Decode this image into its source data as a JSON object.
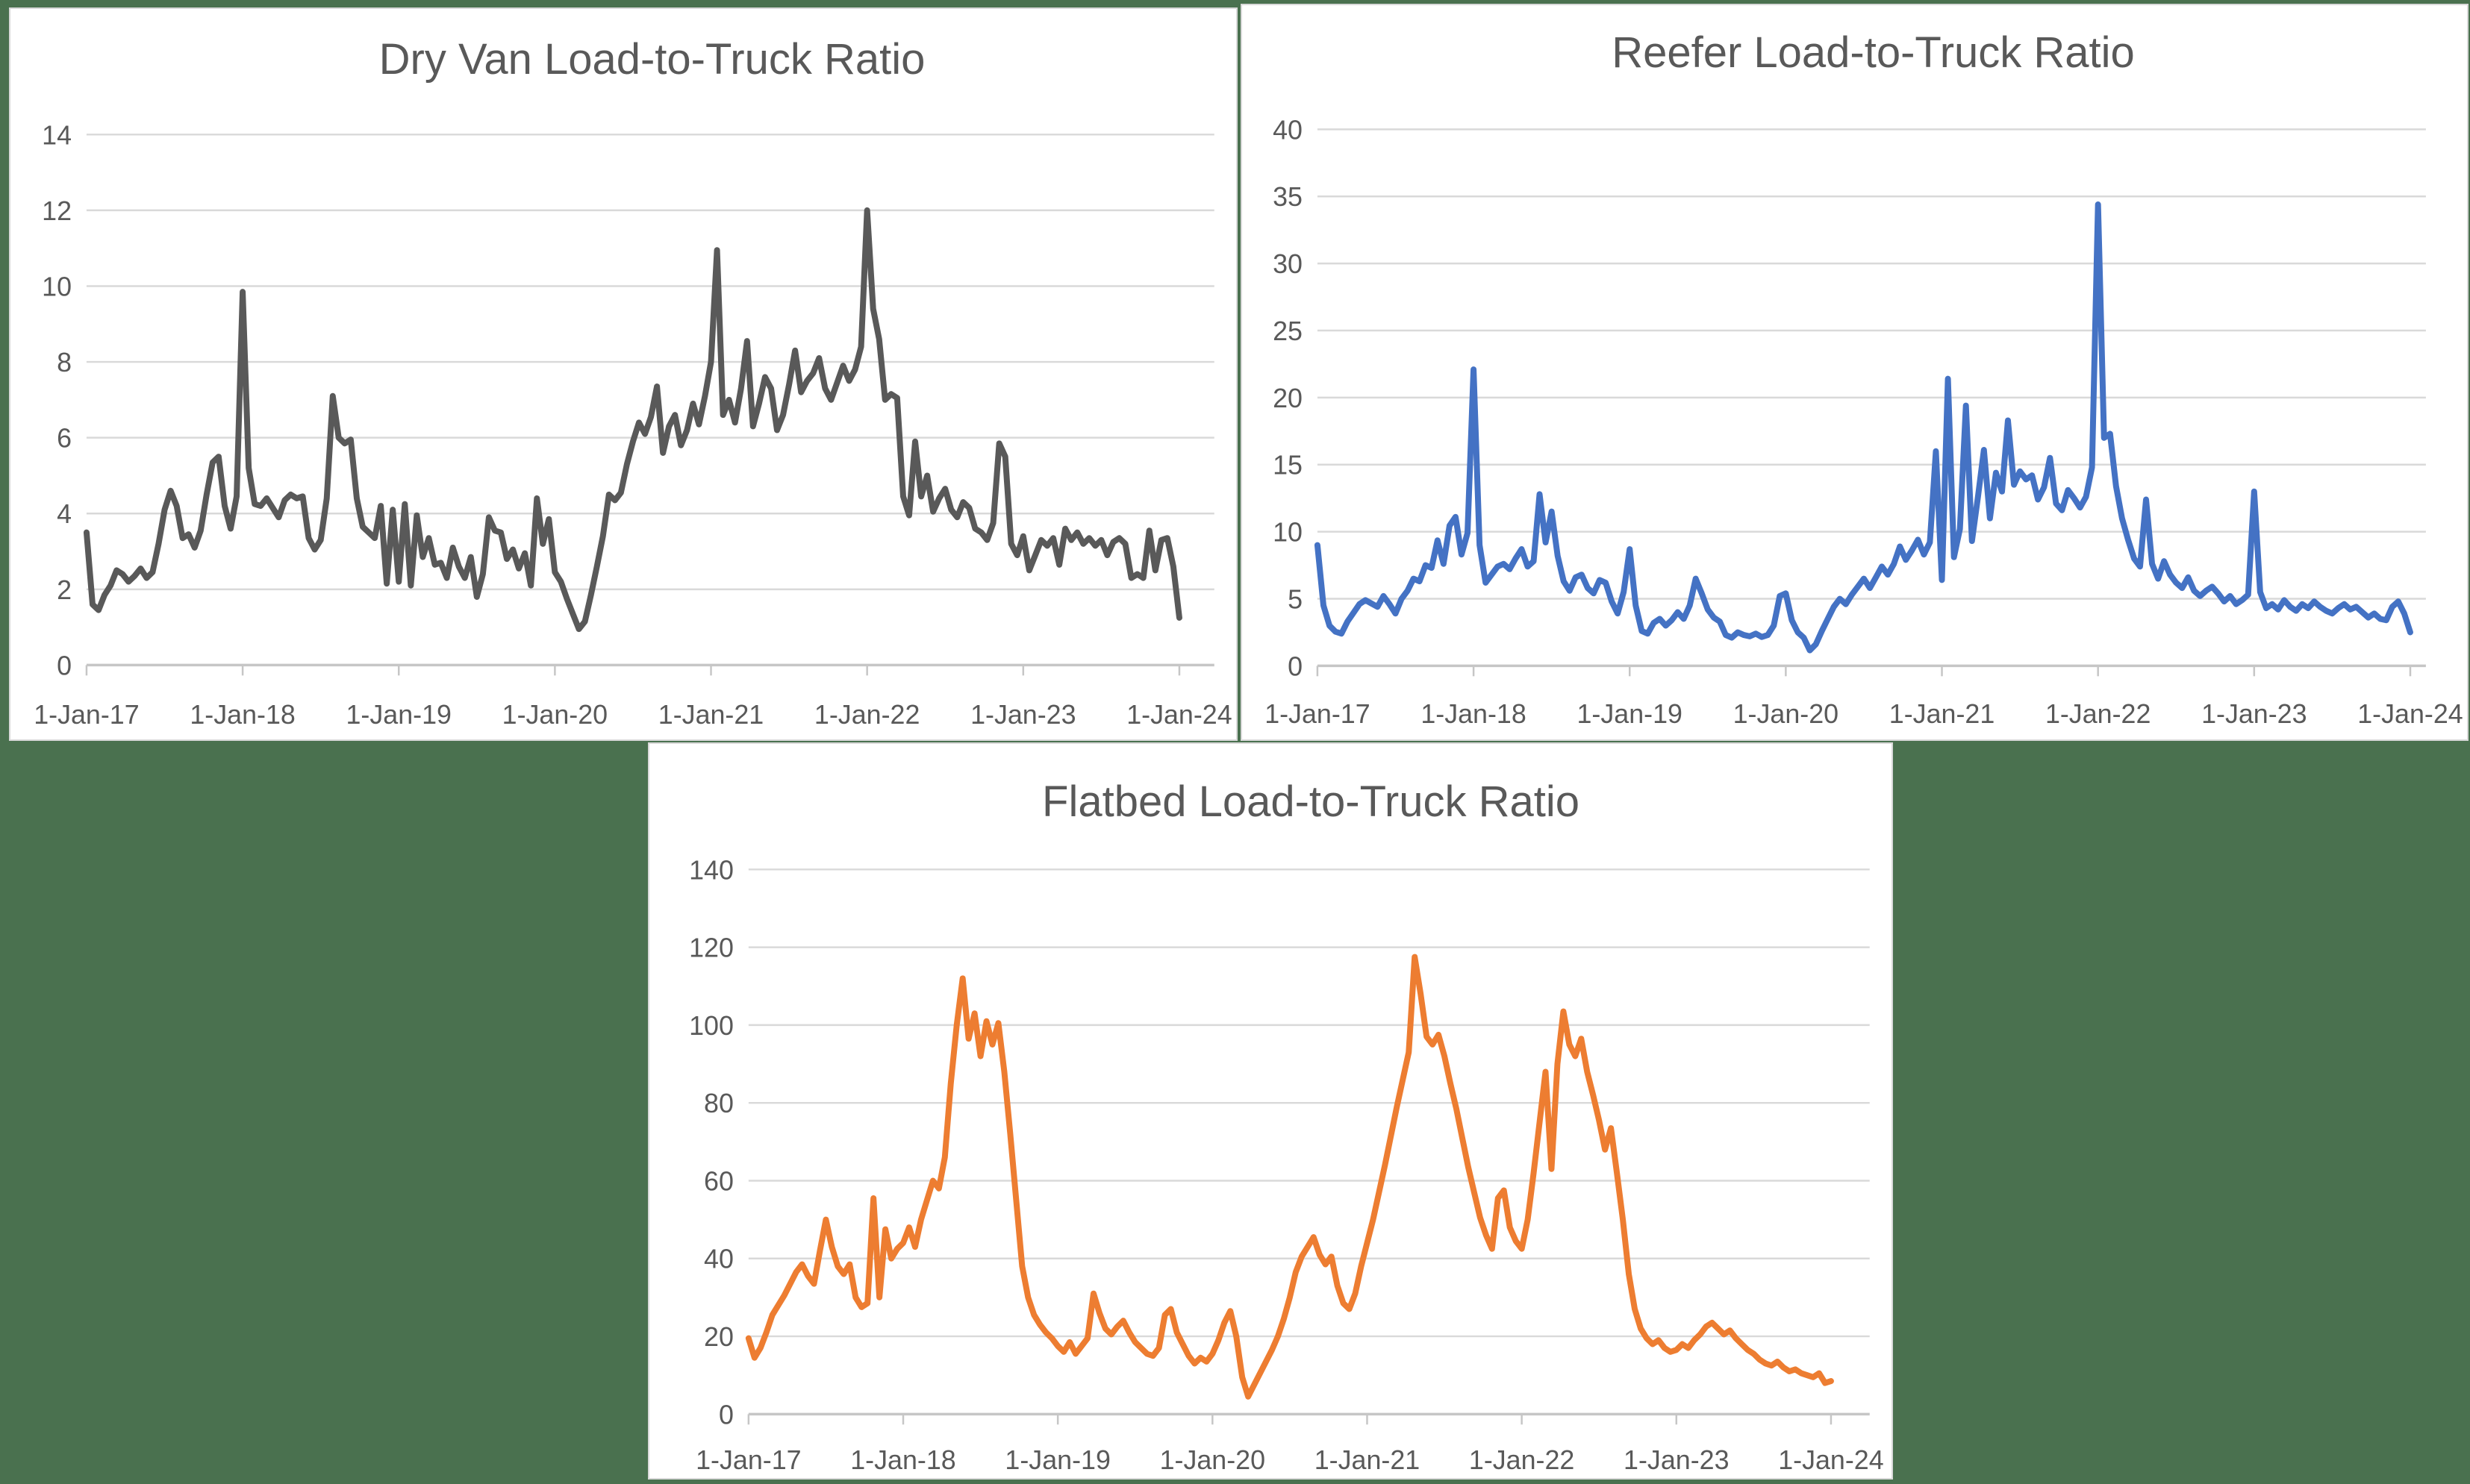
{
  "styles": {
    "page_background": "#4A714F",
    "card_background": "#FFFFFF",
    "card_border": "#D9D9D9",
    "grid_color": "#D9D9D9",
    "axis_color": "#C6C6C6",
    "text_color": "#595959",
    "title_color": "#595959"
  },
  "chart_data": [
    {
      "type": "line",
      "title": "Dry Van Load-to-Truck Ratio",
      "xlabel": "",
      "ylabel": "",
      "ylim": [
        0,
        14
      ],
      "y_ticks": [
        0,
        2,
        4,
        6,
        8,
        10,
        12,
        14
      ],
      "x_tick_labels": [
        "1-Jan-17",
        "1-Jan-18",
        "1-Jan-19",
        "1-Jan-20",
        "1-Jan-21",
        "1-Jan-22",
        "1-Jan-23",
        "1-Jan-24"
      ],
      "grid": true,
      "legend": "none",
      "sampling": "biweekly 2017-01-01 to 2024-01-01",
      "series": [
        {
          "name": "Dry Van Load-to-Truck Ratio",
          "color": "#595959",
          "values": [
            3.5,
            1.6,
            1.45,
            1.85,
            2.1,
            2.5,
            2.4,
            2.2,
            2.35,
            2.55,
            2.3,
            2.45,
            3.2,
            4.1,
            4.6,
            4.2,
            3.35,
            3.45,
            3.1,
            3.55,
            4.5,
            5.35,
            5.5,
            4.2,
            3.6,
            4.45,
            9.85,
            5.2,
            4.25,
            4.2,
            4.4,
            4.15,
            3.9,
            4.35,
            4.5,
            4.4,
            4.45,
            3.35,
            3.05,
            3.3,
            4.4,
            7.1,
            6.0,
            5.85,
            5.95,
            4.4,
            3.65,
            3.5,
            3.35,
            4.2,
            2.15,
            4.1,
            2.2,
            4.25,
            2.1,
            3.95,
            2.85,
            3.35,
            2.65,
            2.7,
            2.3,
            3.1,
            2.6,
            2.3,
            2.85,
            1.8,
            2.4,
            3.9,
            3.55,
            3.5,
            2.8,
            3.05,
            2.55,
            2.95,
            2.1,
            4.4,
            3.2,
            3.85,
            2.45,
            2.2,
            1.75,
            1.35,
            0.95,
            1.15,
            1.85,
            2.6,
            3.4,
            4.5,
            4.35,
            4.55,
            5.3,
            5.9,
            6.4,
            6.1,
            6.55,
            7.35,
            5.6,
            6.3,
            6.6,
            5.8,
            6.2,
            6.9,
            6.35,
            7.1,
            8.0,
            10.95,
            6.6,
            7.0,
            6.4,
            7.3,
            8.55,
            6.3,
            6.9,
            7.6,
            7.3,
            6.2,
            6.6,
            7.4,
            8.3,
            7.2,
            7.5,
            7.7,
            8.1,
            7.3,
            7.0,
            7.45,
            7.9,
            7.5,
            7.8,
            8.4,
            12.0,
            9.4,
            8.6,
            7.0,
            7.15,
            7.05,
            4.45,
            3.95,
            5.9,
            4.45,
            5.0,
            4.05,
            4.4,
            4.65,
            4.1,
            3.9,
            4.3,
            4.15,
            3.6,
            3.5,
            3.3,
            3.75,
            5.85,
            5.5,
            3.2,
            2.9,
            3.4,
            2.5,
            2.9,
            3.3,
            3.15,
            3.35,
            2.65,
            3.6,
            3.3,
            3.5,
            3.2,
            3.35,
            3.15,
            3.3,
            2.9,
            3.25,
            3.35,
            3.2,
            2.3,
            2.4,
            2.3,
            3.55,
            2.5,
            3.3,
            3.35,
            2.6,
            1.25
          ]
        }
      ]
    },
    {
      "type": "line",
      "title": "Reefer Load-to-Truck Ratio",
      "xlabel": "",
      "ylabel": "",
      "ylim": [
        0,
        40
      ],
      "y_ticks": [
        0,
        5,
        10,
        15,
        20,
        25,
        30,
        35,
        40
      ],
      "x_tick_labels": [
        "1-Jan-17",
        "1-Jan-18",
        "1-Jan-19",
        "1-Jan-20",
        "1-Jan-21",
        "1-Jan-22",
        "1-Jan-23",
        "1-Jan-24"
      ],
      "grid": true,
      "legend": "none",
      "sampling": "biweekly 2017-01-01 to 2024-01-01",
      "series": [
        {
          "name": "Reefer Load-to-Truck Ratio",
          "color": "#4472C4",
          "values": [
            9.0,
            4.5,
            3.0,
            2.55,
            2.4,
            3.3,
            3.95,
            4.6,
            4.9,
            4.65,
            4.4,
            5.2,
            4.6,
            3.9,
            5.0,
            5.6,
            6.5,
            6.3,
            7.5,
            7.3,
            9.35,
            7.6,
            10.45,
            11.1,
            8.3,
            9.9,
            22.1,
            9.0,
            6.2,
            6.8,
            7.4,
            7.6,
            7.2,
            8.0,
            8.7,
            7.4,
            7.8,
            12.8,
            9.2,
            11.5,
            8.2,
            6.3,
            5.6,
            6.6,
            6.8,
            5.8,
            5.4,
            6.4,
            6.2,
            4.8,
            3.9,
            5.5,
            8.7,
            4.5,
            2.6,
            2.4,
            3.2,
            3.5,
            3.0,
            3.4,
            4.0,
            3.5,
            4.5,
            6.5,
            5.4,
            4.2,
            3.6,
            3.3,
            2.3,
            2.1,
            2.5,
            2.3,
            2.2,
            2.4,
            2.15,
            2.3,
            3.0,
            5.2,
            5.4,
            3.4,
            2.5,
            2.1,
            1.15,
            1.6,
            2.6,
            3.5,
            4.4,
            5.0,
            4.6,
            5.3,
            5.9,
            6.5,
            5.8,
            6.6,
            7.4,
            6.8,
            7.6,
            8.9,
            7.9,
            8.6,
            9.4,
            8.3,
            9.2,
            16.0,
            6.4,
            21.4,
            8.1,
            10.2,
            19.4,
            9.3,
            12.6,
            16.1,
            11.0,
            14.4,
            13.0,
            18.3,
            13.5,
            14.5,
            13.9,
            14.2,
            12.4,
            13.3,
            15.5,
            12.1,
            11.6,
            13.1,
            12.5,
            11.8,
            12.6,
            14.8,
            34.4,
            17.0,
            17.3,
            13.4,
            11.0,
            9.4,
            8.0,
            7.4,
            12.4,
            7.6,
            6.5,
            7.8,
            6.8,
            6.2,
            5.8,
            6.6,
            5.6,
            5.2,
            5.6,
            5.9,
            5.4,
            4.8,
            5.2,
            4.6,
            4.9,
            5.3,
            13.0,
            5.5,
            4.3,
            4.6,
            4.2,
            4.9,
            4.4,
            4.1,
            4.6,
            4.3,
            4.8,
            4.4,
            4.1,
            3.9,
            4.3,
            4.6,
            4.2,
            4.4,
            4.0,
            3.6,
            3.9,
            3.5,
            3.4,
            4.4,
            4.8,
            3.9,
            2.5
          ]
        }
      ]
    },
    {
      "type": "line",
      "title": "Flatbed Load-to-Truck Ratio",
      "xlabel": "",
      "ylabel": "",
      "ylim": [
        0,
        140
      ],
      "y_ticks": [
        0,
        20,
        40,
        60,
        80,
        100,
        120,
        140
      ],
      "x_tick_labels": [
        "1-Jan-17",
        "1-Jan-18",
        "1-Jan-19",
        "1-Jan-20",
        "1-Jan-21",
        "1-Jan-22",
        "1-Jan-23",
        "1-Jan-24"
      ],
      "grid": true,
      "legend": "none",
      "sampling": "biweekly 2017-01-01 to 2024-01-01",
      "series": [
        {
          "name": "Flatbed Load-to-Truck Ratio",
          "color": "#ED7D31",
          "values": [
            19.5,
            14.5,
            17.0,
            21.0,
            25.5,
            28.0,
            30.5,
            33.5,
            36.5,
            38.5,
            35.5,
            33.5,
            42.0,
            50.0,
            43.0,
            38.0,
            36.0,
            38.5,
            30.0,
            27.5,
            28.5,
            55.5,
            30.0,
            47.5,
            40.0,
            42.5,
            44.0,
            48.0,
            43.0,
            50.0,
            55.0,
            60.0,
            58.0,
            66.0,
            85.0,
            100.0,
            112.0,
            96.5,
            103.0,
            92.0,
            101.0,
            95.0,
            100.5,
            88.0,
            72.0,
            55.0,
            38.0,
            30.0,
            25.5,
            23.0,
            21.0,
            19.5,
            17.5,
            16.0,
            18.5,
            15.5,
            17.5,
            19.5,
            31.0,
            26.0,
            22.0,
            20.5,
            22.5,
            24.0,
            21.0,
            18.5,
            17.0,
            15.5,
            15.0,
            17.0,
            25.5,
            27.0,
            21.0,
            18.0,
            15.0,
            13.0,
            14.5,
            13.5,
            15.5,
            19.0,
            23.5,
            26.5,
            20.0,
            9.5,
            4.5,
            7.5,
            10.5,
            13.5,
            16.5,
            20.0,
            24.5,
            30.0,
            36.5,
            40.5,
            43.0,
            45.5,
            41.0,
            38.5,
            40.5,
            33.0,
            28.5,
            27.0,
            31.0,
            38.0,
            44.0,
            50.0,
            57.0,
            64.0,
            71.5,
            79.0,
            86.0,
            93.0,
            117.5,
            108.0,
            97.0,
            95.0,
            97.5,
            92.0,
            85.0,
            78.5,
            71.0,
            63.5,
            57.0,
            50.5,
            46.0,
            42.5,
            55.5,
            57.5,
            48.0,
            44.5,
            42.5,
            50.0,
            62.0,
            75.0,
            88.0,
            63.0,
            90.0,
            103.5,
            95.0,
            92.0,
            96.5,
            88.0,
            82.0,
            75.5,
            68.0,
            73.5,
            62.0,
            50.0,
            36.0,
            27.0,
            22.0,
            19.5,
            18.0,
            19.0,
            17.0,
            16.0,
            16.5,
            18.0,
            17.0,
            19.0,
            20.5,
            22.5,
            23.5,
            22.0,
            20.5,
            21.5,
            19.5,
            18.0,
            16.5,
            15.5,
            14.0,
            13.0,
            12.5,
            13.5,
            12.0,
            11.0,
            11.5,
            10.5,
            10.0,
            9.5,
            10.5,
            8.0,
            8.5
          ]
        }
      ]
    }
  ]
}
